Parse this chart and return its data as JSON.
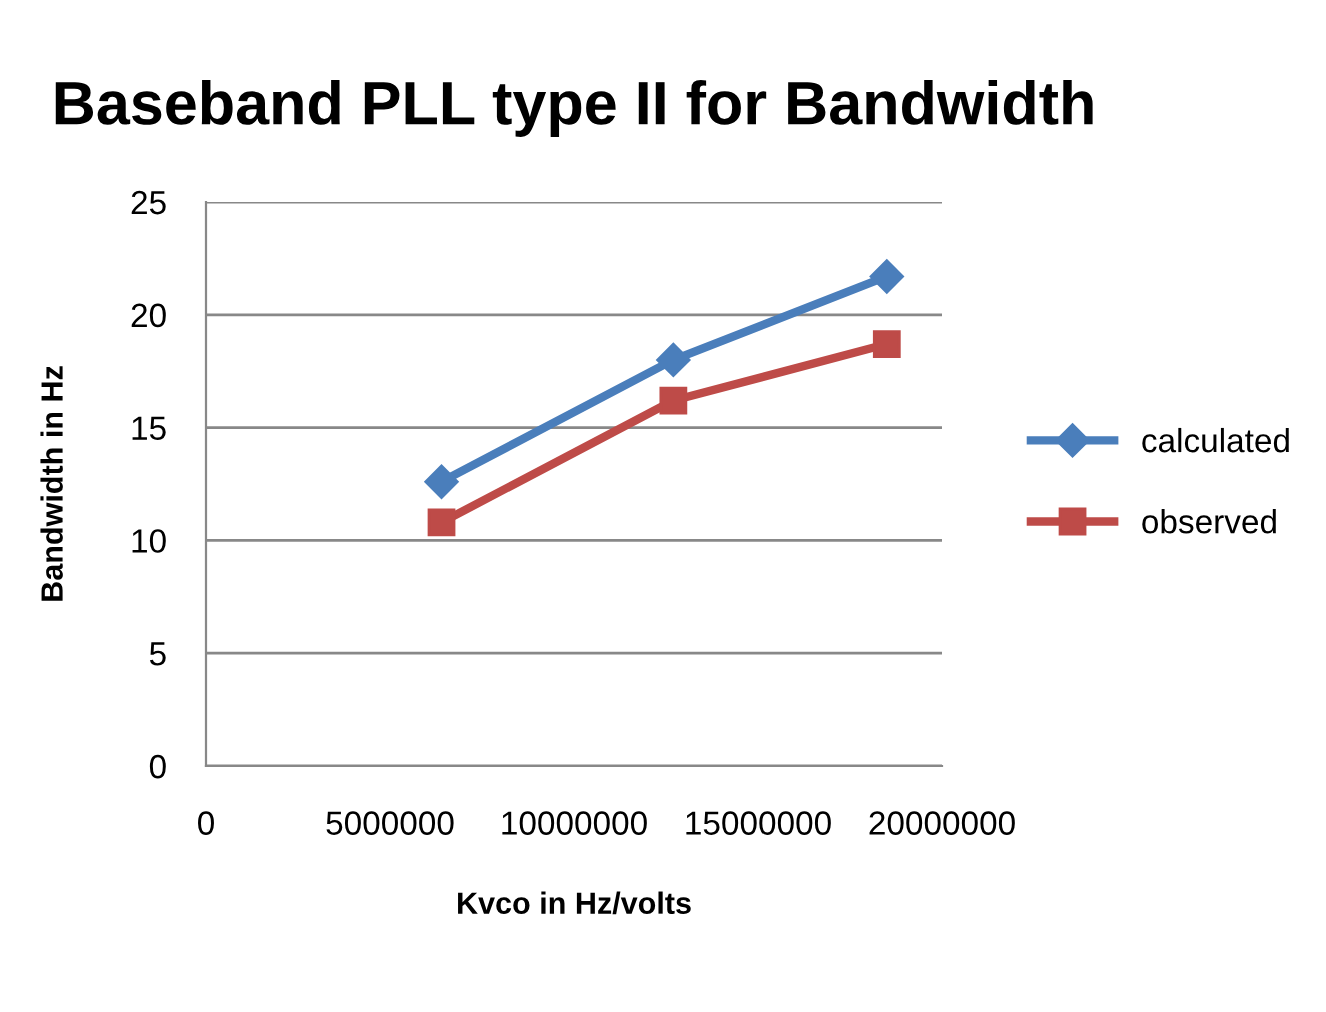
{
  "chart_data": {
    "type": "line",
    "title": "Baseband PLL type II for Bandwidth",
    "xlabel": "Kvco in Hz/volts",
    "ylabel": "Bandwidth in Hz",
    "x": [
      6400000,
      12700000,
      18500000
    ],
    "series": [
      {
        "name": "calculated",
        "color": "#4a7ebb",
        "marker": "diamond",
        "values": [
          12.6,
          18.0,
          21.7
        ]
      },
      {
        "name": "observed",
        "color": "#be4b48",
        "marker": "square",
        "values": [
          10.8,
          16.2,
          18.7
        ]
      }
    ],
    "xlim": [
      0,
      20000000
    ],
    "xticks": [
      0,
      5000000,
      10000000,
      15000000,
      20000000
    ],
    "ylim": [
      0,
      25
    ],
    "yticks": [
      0,
      5,
      10,
      15,
      20,
      25
    ],
    "grid": "y",
    "legend": "right",
    "line_style": "solid"
  }
}
